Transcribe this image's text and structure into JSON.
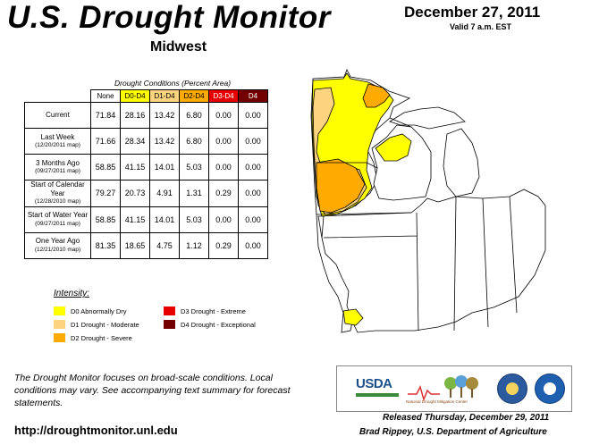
{
  "header": {
    "title": "U.S. Drought Monitor",
    "region": "Midwest",
    "date": "December 27, 2011",
    "valid": "Valid 7 a.m. EST"
  },
  "table": {
    "caption": "Drought Conditions (Percent Area)",
    "columns": [
      "None",
      "D0-D4",
      "D1-D4",
      "D2-D4",
      "D3-D4",
      "D4"
    ],
    "column_colors": [
      "#ffffff",
      "#ffff00",
      "#fcd37f",
      "#ffaa00",
      "#e60000",
      "#730000"
    ],
    "column_text_colors": [
      "#000000",
      "#000000",
      "#000000",
      "#000000",
      "#ffffff",
      "#ffffff"
    ],
    "rows": [
      {
        "label": "Current",
        "sub": "",
        "values": [
          "71.84",
          "28.16",
          "13.42",
          "6.80",
          "0.00",
          "0.00"
        ]
      },
      {
        "label": "Last Week",
        "sub": "(12/20/2011 map)",
        "values": [
          "71.66",
          "28.34",
          "13.42",
          "6.80",
          "0.00",
          "0.00"
        ]
      },
      {
        "label": "3 Months Ago",
        "sub": "(09/27/2011 map)",
        "values": [
          "58.85",
          "41.15",
          "14.01",
          "5.03",
          "0.00",
          "0.00"
        ]
      },
      {
        "label": "Start of Calendar Year",
        "sub": "(12/28/2010 map)",
        "values": [
          "79.27",
          "20.73",
          "4.91",
          "1.31",
          "0.29",
          "0.00"
        ]
      },
      {
        "label": "Start of Water Year",
        "sub": "(09/27/2011 map)",
        "values": [
          "58.85",
          "41.15",
          "14.01",
          "5.03",
          "0.00",
          "0.00"
        ]
      },
      {
        "label": "One Year Ago",
        "sub": "(12/21/2010 map)",
        "values": [
          "81.35",
          "18.65",
          "4.75",
          "1.12",
          "0.29",
          "0.00"
        ]
      }
    ]
  },
  "legend": {
    "title": "Intensity:",
    "items": [
      {
        "label": "D0 Abnormally Dry",
        "color": "#ffff00"
      },
      {
        "label": "D1 Drought - Moderate",
        "color": "#fcd37f"
      },
      {
        "label": "D2 Drought - Severe",
        "color": "#ffaa00"
      },
      {
        "label": "D3 Drought - Extreme",
        "color": "#e60000"
      },
      {
        "label": "D4 Drought - Exceptional",
        "color": "#730000"
      }
    ]
  },
  "note": "The Drought Monitor focuses on broad-scale conditions. Local conditions may vary. See accompanying text summary for forecast statements.",
  "url": "http://droughtmonitor.unl.edu",
  "footer": {
    "released": "Released Thursday, December 29, 2011",
    "author": "Brad Rippey, U.S. Department of Agriculture"
  },
  "logos": {
    "usda": "USDA",
    "ndmc": "National Drought Mitigation Center"
  },
  "map_colors": {
    "none": "#ffffff",
    "d0": "#ffff00",
    "d1": "#fcd37f",
    "d2": "#ffaa00",
    "outline": "#000000"
  }
}
